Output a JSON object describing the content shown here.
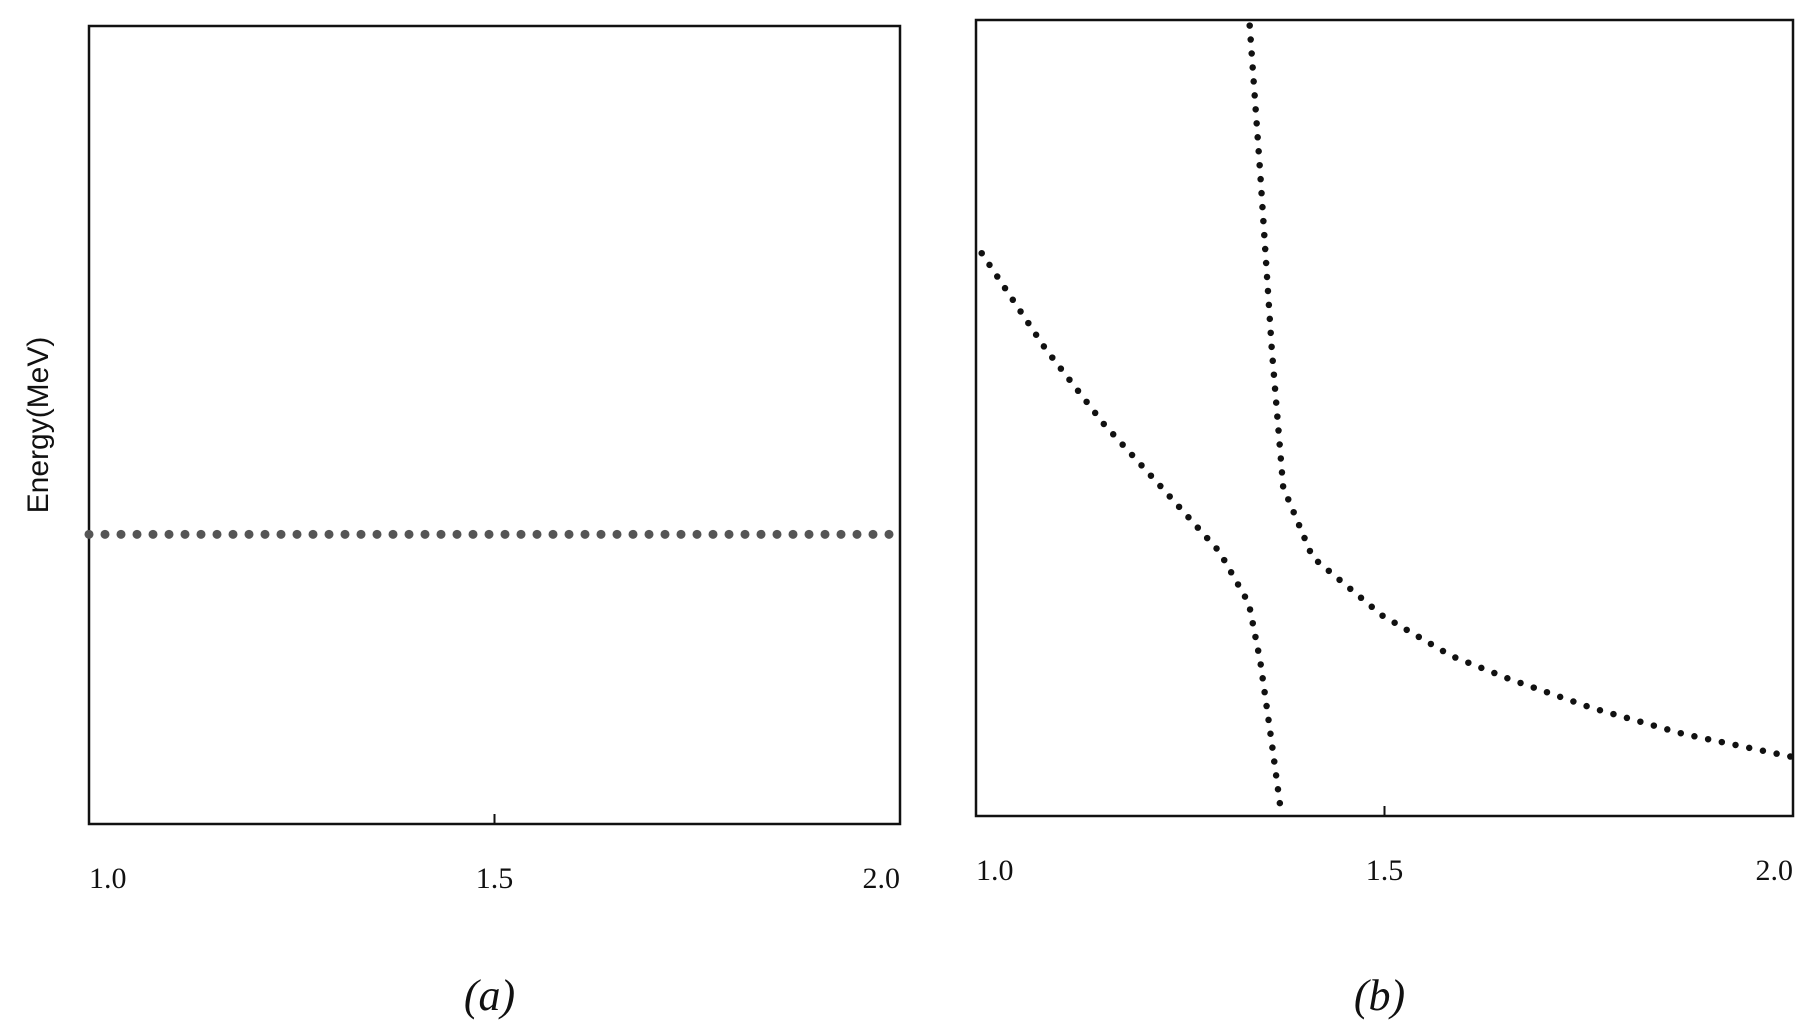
{
  "chart_data": [
    {
      "type": "line",
      "title": "(a)",
      "ylabel": "Energy(MeV)",
      "xlim": [
        1.0,
        2.0
      ],
      "xticks": [
        {
          "value": 1.0,
          "label": "1.0"
        },
        1.5,
        {
          "value": 2.0,
          "label": "2.0"
        }
      ],
      "ylim": [
        0,
        1
      ],
      "series": [
        {
          "color": "#555555",
          "x": [
            1.0,
            1.99
          ],
          "values": [
            0.363,
            0.363
          ]
        }
      ]
    },
    {
      "type": "line",
      "title": "(b)",
      "xlim": [
        1.0,
        2.0
      ],
      "xticks": [
        {
          "value": 1.0,
          "label": "1.0"
        },
        1.5,
        {
          "value": 2.0,
          "label": "2.0"
        }
      ],
      "ylim": [
        0,
        1
      ],
      "series": [
        {
          "color": "#111111",
          "x": [
            1.007,
            1.085,
            1.156,
            1.227,
            1.298,
            1.334,
            1.348,
            1.362,
            1.374
          ],
          "values": [
            0.707,
            0.587,
            0.493,
            0.413,
            0.332,
            0.267,
            0.194,
            0.092,
            0.0
          ]
        },
        {
          "color": "#111111",
          "x": [
            1.335,
            1.348,
            1.362,
            1.376,
            1.412,
            1.497,
            1.582,
            1.653,
            1.753,
            1.866,
            2.0
          ],
          "values": [
            0.993,
            0.806,
            0.587,
            0.413,
            0.325,
            0.252,
            0.201,
            0.172,
            0.136,
            0.103,
            0.074
          ]
        }
      ]
    }
  ]
}
